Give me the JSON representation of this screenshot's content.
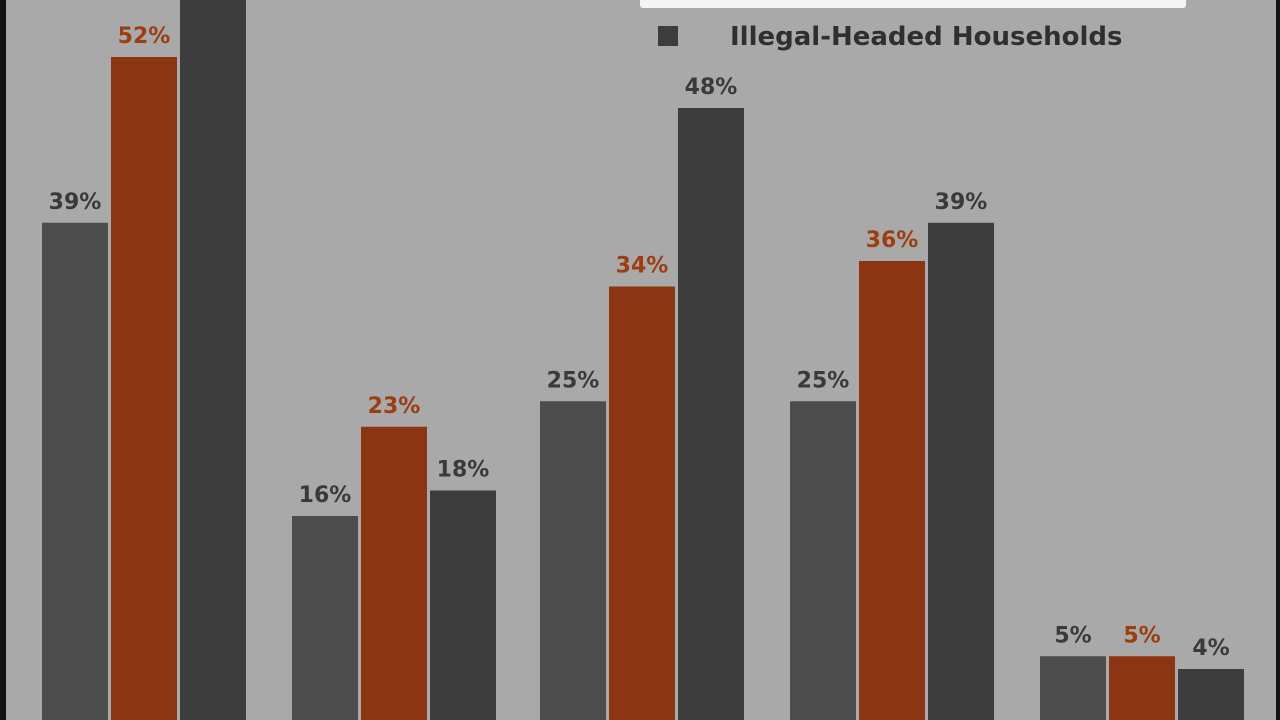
{
  "chart_data": {
    "type": "bar",
    "series": [
      {
        "name": "",
        "color": "#4d4d4d",
        "label_color": "#3a3a3a",
        "values": [
          39,
          16,
          25,
          25,
          5
        ]
      },
      {
        "name": "",
        "color": "#8c3512",
        "label_color": "#9c3e12",
        "values": [
          52,
          23,
          34,
          36,
          5
        ]
      },
      {
        "name": "Illegal-Headed Households",
        "color": "#3d3d3d",
        "label_color": "#3a3a3a",
        "values": [
          null,
          18,
          48,
          39,
          4
        ]
      }
    ],
    "data_labels": [
      [
        "39%",
        "16%",
        "25%",
        "25%",
        "5%"
      ],
      [
        "52%",
        "23%",
        "34%",
        "36%",
        "5%"
      ],
      [
        "",
        "18%",
        "48%",
        "39%",
        "4%"
      ]
    ],
    "legend": {
      "visible_entry": "Illegal-Headed Households",
      "marker_color": "#3d3d3d",
      "placement": "top-right"
    },
    "ylim": [
      0,
      100
    ],
    "grid": false
  }
}
